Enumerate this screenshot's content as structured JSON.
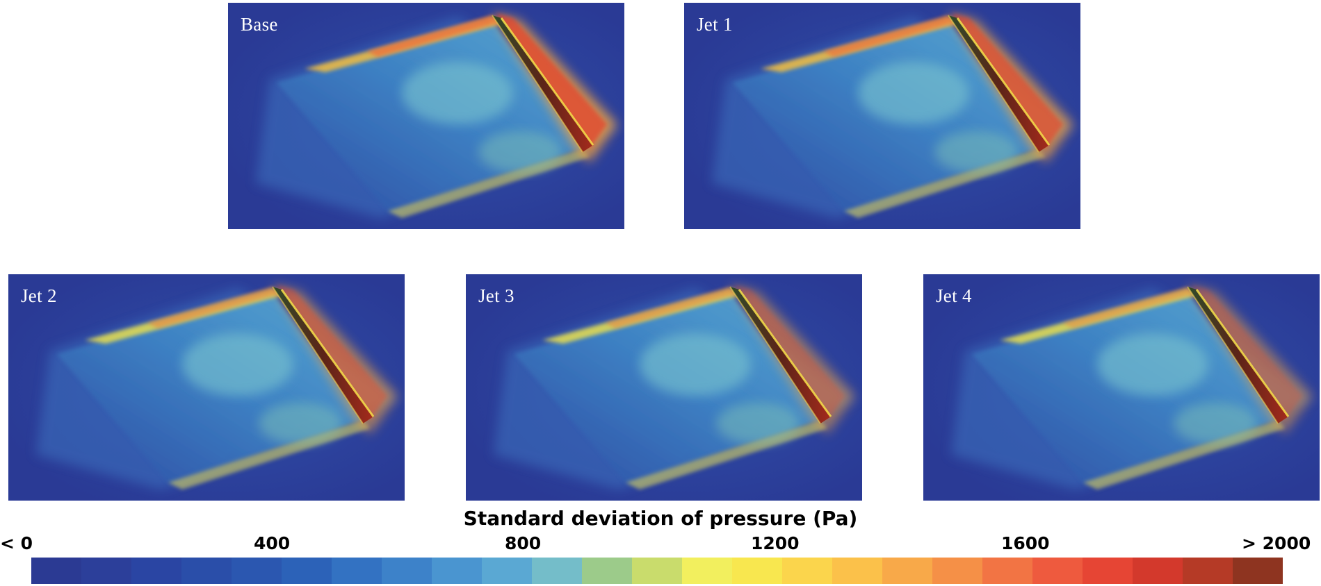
{
  "panels": [
    {
      "id": "base",
      "label": "Base",
      "front_intensity": 1.0,
      "top_intensity": 0.9
    },
    {
      "id": "jet1",
      "label": "Jet 1",
      "front_intensity": 0.85,
      "top_intensity": 0.8
    },
    {
      "id": "jet2",
      "label": "Jet 2",
      "front_intensity": 0.55,
      "top_intensity": 0.6
    },
    {
      "id": "jet3",
      "label": "Jet 3",
      "front_intensity": 0.4,
      "top_intensity": 0.55
    },
    {
      "id": "jet4",
      "label": "Jet 4",
      "front_intensity": 0.35,
      "top_intensity": 0.5
    }
  ],
  "colorbar": {
    "title": "Standard deviation of pressure (Pa)",
    "tick_labels": [
      "< 0",
      "400",
      "800",
      "1200",
      "1600",
      "> 2000"
    ],
    "colors": [
      "#2b3a93",
      "#2c3f9a",
      "#2a45a3",
      "#2a4ea9",
      "#2b57b0",
      "#2c62b8",
      "#3372c2",
      "#3d82c9",
      "#4a95d0",
      "#5aa8d3",
      "#74bdc9",
      "#9ccb8a",
      "#c9dc6c",
      "#f2ef5e",
      "#f8e74f",
      "#fbd54c",
      "#fbc14a",
      "#f8a949",
      "#f59047",
      "#f27444",
      "#ee5a3e",
      "#e64534",
      "#d3392c",
      "#b53a26",
      "#8e3420"
    ]
  }
}
